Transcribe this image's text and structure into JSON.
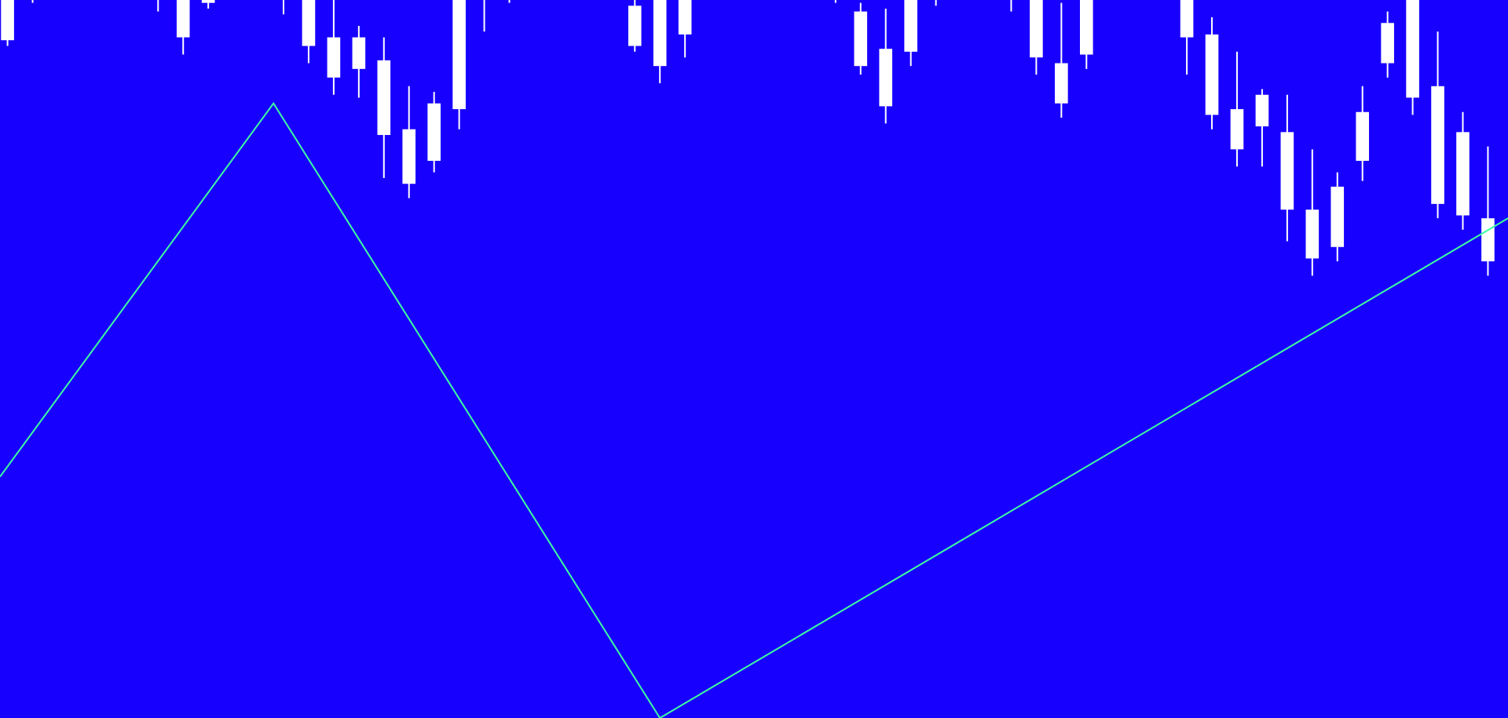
{
  "chart_data": {
    "type": "candlestick",
    "title": "",
    "xlabel": "",
    "ylabel": "",
    "grid": false,
    "legend": "none",
    "x_range": [
      -0.3,
      59.8
    ],
    "ylim": [
      10,
      35
    ],
    "colors": {
      "background": "#1800ff",
      "candle": "#ffffff",
      "zigzag": "#3dffa0"
    },
    "candles": [
      {
        "i": 0,
        "open": 33.6,
        "close": 36.0,
        "high": 36.0,
        "low": 33.4
      },
      {
        "i": 1,
        "open": 35.2,
        "close": 36.0,
        "high": 36.0,
        "low": 34.9
      },
      {
        "i": 6,
        "open": 35.1,
        "close": 36.0,
        "high": 36.0,
        "low": 34.6
      },
      {
        "i": 7,
        "open": 33.7,
        "close": 36.0,
        "high": 36.0,
        "low": 33.1
      },
      {
        "i": 8,
        "open": 34.9,
        "close": 36.0,
        "high": 36.0,
        "low": 34.7
      },
      {
        "i": 11,
        "open": 35.0,
        "close": 36.0,
        "high": 36.0,
        "low": 34.5
      },
      {
        "i": 12,
        "open": 33.4,
        "close": 36.0,
        "high": 36.0,
        "low": 32.8
      },
      {
        "i": 13,
        "open": 32.3,
        "close": 33.7,
        "high": 36.0,
        "low": 31.7
      },
      {
        "i": 14,
        "open": 33.7,
        "close": 32.6,
        "high": 34.1,
        "low": 31.6
      },
      {
        "i": 15,
        "open": 32.9,
        "close": 30.3,
        "high": 33.7,
        "low": 28.8
      },
      {
        "i": 16,
        "open": 30.5,
        "close": 28.6,
        "high": 32.0,
        "low": 28.1
      },
      {
        "i": 17,
        "open": 29.4,
        "close": 31.4,
        "high": 31.8,
        "low": 29.0
      },
      {
        "i": 18,
        "open": 31.2,
        "close": 36.0,
        "high": 36.0,
        "low": 30.5
      },
      {
        "i": 19,
        "open": 35.5,
        "close": 36.0,
        "high": 36.0,
        "low": 33.9
      },
      {
        "i": 20,
        "open": 35.5,
        "close": 36.0,
        "high": 36.0,
        "low": 34.9
      },
      {
        "i": 24,
        "open": 35.5,
        "close": 36.0,
        "high": 36.0,
        "low": 35.5
      },
      {
        "i": 25,
        "open": 33.4,
        "close": 34.8,
        "high": 35.0,
        "low": 33.2
      },
      {
        "i": 26,
        "open": 32.7,
        "close": 36.0,
        "high": 36.0,
        "low": 32.1
      },
      {
        "i": 27,
        "open": 33.8,
        "close": 36.0,
        "high": 36.0,
        "low": 33.0
      },
      {
        "i": 31,
        "open": 35.4,
        "close": 36.0,
        "high": 36.0,
        "low": 35.1
      },
      {
        "i": 33,
        "open": 35.0,
        "close": 36.0,
        "high": 36.0,
        "low": 34.9
      },
      {
        "i": 34,
        "open": 32.7,
        "close": 34.6,
        "high": 34.9,
        "low": 32.4
      },
      {
        "i": 35,
        "open": 31.3,
        "close": 33.3,
        "high": 34.7,
        "low": 30.7
      },
      {
        "i": 36,
        "open": 33.2,
        "close": 36.0,
        "high": 36.0,
        "low": 32.7
      },
      {
        "i": 37,
        "open": 35.1,
        "close": 35.0,
        "high": 35.4,
        "low": 34.8
      },
      {
        "i": 40,
        "open": 35.3,
        "close": 36.0,
        "high": 36.0,
        "low": 34.6
      },
      {
        "i": 41,
        "open": 33.0,
        "close": 36.0,
        "high": 36.0,
        "low": 32.4
      },
      {
        "i": 42,
        "open": 31.4,
        "close": 32.8,
        "high": 34.9,
        "low": 30.9
      },
      {
        "i": 43,
        "open": 33.1,
        "close": 36.0,
        "high": 36.0,
        "low": 32.6
      },
      {
        "i": 47,
        "open": 33.7,
        "close": 36.0,
        "high": 36.0,
        "low": 32.4
      },
      {
        "i": 48,
        "open": 31.0,
        "close": 33.8,
        "high": 34.4,
        "low": 30.5
      },
      {
        "i": 49,
        "open": 31.2,
        "close": 29.8,
        "high": 33.2,
        "low": 29.2
      },
      {
        "i": 50,
        "open": 31.7,
        "close": 30.6,
        "high": 31.9,
        "low": 29.2
      },
      {
        "i": 51,
        "open": 30.4,
        "close": 27.7,
        "high": 31.7,
        "low": 26.6
      },
      {
        "i": 52,
        "open": 27.7,
        "close": 26.0,
        "high": 29.8,
        "low": 25.4
      },
      {
        "i": 53,
        "open": 26.4,
        "close": 28.5,
        "high": 29.0,
        "low": 25.9
      },
      {
        "i": 54,
        "open": 29.4,
        "close": 31.1,
        "high": 32.0,
        "low": 28.7
      },
      {
        "i": 55,
        "open": 32.8,
        "close": 34.2,
        "high": 34.6,
        "low": 32.3
      },
      {
        "i": 56,
        "open": 31.6,
        "close": 35.4,
        "high": 36.0,
        "low": 31.0
      },
      {
        "i": 57,
        "open": 27.9,
        "close": 32.0,
        "high": 33.9,
        "low": 27.4
      },
      {
        "i": 58,
        "open": 27.5,
        "close": 30.4,
        "high": 31.1,
        "low": 27.0
      },
      {
        "i": 59,
        "open": 25.9,
        "close": 27.4,
        "high": 29.9,
        "low": 25.4
      }
    ],
    "zigzag": {
      "x": [
        -0.3,
        10.6,
        26.0,
        59.8
      ],
      "y": [
        18.4,
        31.4,
        10.0,
        27.4
      ]
    }
  }
}
